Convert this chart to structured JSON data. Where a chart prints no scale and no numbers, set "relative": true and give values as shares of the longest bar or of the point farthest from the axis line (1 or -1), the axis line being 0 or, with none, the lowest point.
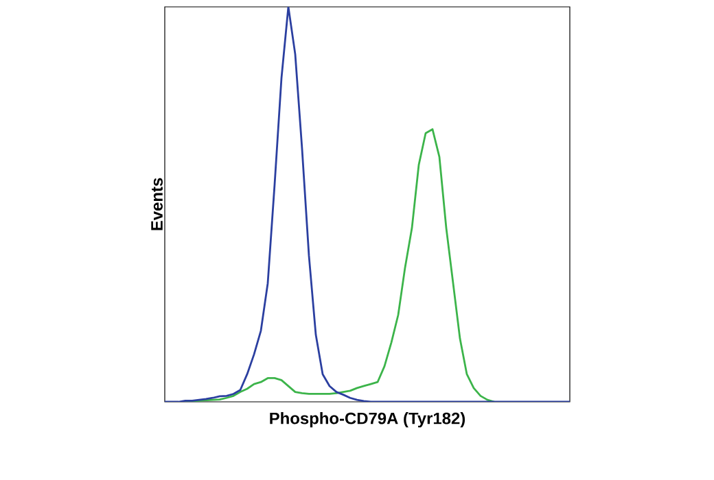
{
  "chart_data": {
    "type": "line",
    "relative": true,
    "xlabel": "Phospho-CD79A (Tyr182)",
    "ylabel": "Events",
    "categories": [
      null,
      null,
      null,
      null,
      null,
      null,
      null,
      null,
      null,
      null,
      null,
      null,
      null,
      null,
      null,
      null,
      null,
      null,
      null,
      null,
      null,
      null,
      null,
      null,
      null,
      null,
      null,
      null,
      null,
      null,
      null,
      null,
      null,
      null,
      null,
      null,
      null,
      null,
      null,
      null,
      null,
      null,
      null,
      null,
      null,
      null,
      null,
      null,
      null,
      null,
      null,
      null,
      null,
      null,
      null,
      null,
      null,
      null,
      null,
      null
    ],
    "series": [
      {
        "color": "#2b3fa0",
        "values": [
          0,
          0,
          0,
          0.003,
          0.003,
          0.005,
          0.007,
          0.01,
          0.014,
          0.015,
          0.02,
          0.03,
          0.07,
          0.12,
          0.18,
          0.3,
          0.55,
          0.82,
          1.0,
          0.88,
          0.64,
          0.37,
          0.17,
          0.07,
          0.04,
          0.025,
          0.018,
          0.01,
          0.005,
          0.002,
          0,
          0,
          0,
          0,
          0,
          0,
          0,
          0,
          0,
          0,
          0,
          0,
          0,
          0,
          0,
          0,
          0,
          0,
          0,
          0,
          0,
          0,
          0,
          0,
          0,
          0,
          0,
          0,
          0,
          0
        ]
      },
      {
        "color": "#3cb44a",
        "values": [
          null,
          null,
          null,
          0,
          0.002,
          0.003,
          0.004,
          0.005,
          0.006,
          0.01,
          0.015,
          0.025,
          0.033,
          0.045,
          0.05,
          0.06,
          0.06,
          0.055,
          0.04,
          0.025,
          0.022,
          0.02,
          0.02,
          0.02,
          0.02,
          0.022,
          0.025,
          0.028,
          0.035,
          0.04,
          0.045,
          0.05,
          0.09,
          0.15,
          0.22,
          0.34,
          0.44,
          0.6,
          0.68,
          0.69,
          0.62,
          0.44,
          0.3,
          0.16,
          0.07,
          0.035,
          0.015,
          0.005,
          0,
          null,
          null,
          null,
          null,
          null,
          null,
          null,
          null,
          null,
          null,
          null
        ]
      }
    ]
  }
}
